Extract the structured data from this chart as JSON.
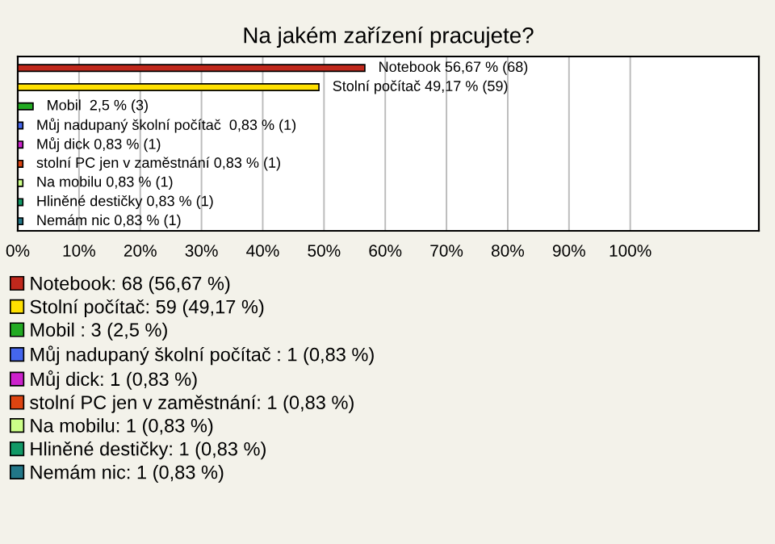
{
  "chart_data": {
    "type": "bar",
    "orientation": "horizontal",
    "stacked": true,
    "title": "Na jakém zařízení pracujete?",
    "categories": [
      null,
      null,
      null,
      null,
      null,
      null,
      null,
      null,
      null
    ],
    "series": [
      {
        "name": "Notebook: 68 (56,67 %)",
        "color": "#c0281c",
        "values": [
          56.67,
          null,
          null,
          null,
          null,
          null,
          null,
          null,
          null
        ],
        "value_labels": [
          "Notebook 56,67 % (68)",
          null,
          null,
          null,
          null,
          null,
          null,
          null,
          null
        ]
      },
      {
        "name": "Stolní počítač: 59 (49,17 %)",
        "color": "#ffe000",
        "values": [
          null,
          49.17,
          null,
          null,
          null,
          null,
          null,
          null,
          null
        ],
        "value_labels": [
          null,
          "Stolní počítač 49,17 % (59)",
          null,
          null,
          null,
          null,
          null,
          null,
          null
        ]
      },
      {
        "name": "Mobil : 3 (2,5 %)",
        "color": "#22aa22",
        "values": [
          null,
          null,
          2.5,
          null,
          null,
          null,
          null,
          null,
          null
        ],
        "value_labels": [
          null,
          null,
          "Mobil  2,5 % (3)",
          null,
          null,
          null,
          null,
          null,
          null
        ]
      },
      {
        "name": "Můj nadupaný školní počítač : 1 (0,83 %)",
        "color": "#4466ee",
        "values": [
          null,
          null,
          null,
          0.83,
          null,
          null,
          null,
          null,
          null
        ],
        "value_labels": [
          null,
          null,
          null,
          "Můj nadupaný školní počítač  0,83 % (1)",
          null,
          null,
          null,
          null,
          null
        ]
      },
      {
        "name": "Můj dick: 1 (0,83 %)",
        "color": "#cc22cc",
        "values": [
          null,
          null,
          null,
          null,
          0.83,
          null,
          null,
          null,
          null
        ],
        "value_labels": [
          null,
          null,
          null,
          null,
          "Můj dick 0,83 % (1)",
          null,
          null,
          null,
          null
        ]
      },
      {
        "name": "stolní PC jen v zaměstnání: 1 (0,83 %)",
        "color": "#dd4411",
        "values": [
          null,
          null,
          null,
          null,
          null,
          0.83,
          null,
          null,
          null
        ],
        "value_labels": [
          null,
          null,
          null,
          null,
          null,
          "stolní PC jen v zaměstnání 0,83 % (1)",
          null,
          null,
          null
        ]
      },
      {
        "name": "Na mobilu: 1 (0,83 %)",
        "color": "#ccff88",
        "values": [
          null,
          null,
          null,
          null,
          null,
          null,
          0.83,
          null,
          null
        ],
        "value_labels": [
          null,
          null,
          null,
          null,
          null,
          null,
          "Na mobilu 0,83 % (1)",
          null,
          null
        ]
      },
      {
        "name": "Hliněné destičky: 1 (0,83 %)",
        "color": "#119966",
        "values": [
          null,
          null,
          null,
          null,
          null,
          null,
          null,
          0.83,
          null
        ],
        "value_labels": [
          null,
          null,
          null,
          null,
          null,
          null,
          null,
          "Hliněné destičky 0,83 % (1)",
          null
        ]
      },
      {
        "name": "Nemám nic: 1 (0,83 %)",
        "color": "#227788",
        "values": [
          null,
          null,
          null,
          null,
          null,
          null,
          null,
          null,
          0.83
        ],
        "value_labels": [
          null,
          null,
          null,
          null,
          null,
          null,
          null,
          null,
          "Nemám nic 0,83 % (1)"
        ]
      }
    ],
    "xlim": [
      0,
      121
    ],
    "xticks": [
      {
        "value": 0,
        "label": "0%"
      },
      {
        "value": 10,
        "label": "10%"
      },
      {
        "value": 20,
        "label": "20%"
      },
      {
        "value": 30,
        "label": "30%"
      },
      {
        "value": 40,
        "label": "40%"
      },
      {
        "value": 50,
        "label": "50%"
      },
      {
        "value": 60,
        "label": "60%"
      },
      {
        "value": 70,
        "label": "70%"
      },
      {
        "value": 80,
        "label": "80%"
      },
      {
        "value": 90,
        "label": "90%"
      },
      {
        "value": 100,
        "label": "100%"
      }
    ],
    "grid": "x",
    "legend": "bottom",
    "tick_labels": "x"
  }
}
